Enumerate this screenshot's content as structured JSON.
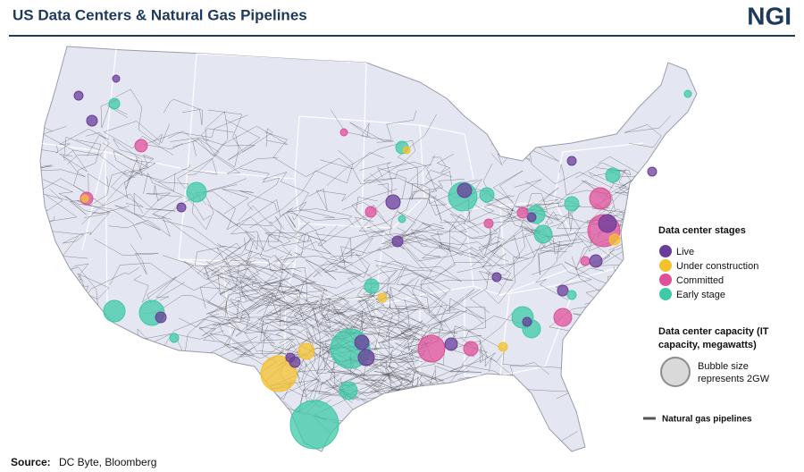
{
  "header": {
    "title": "US Data Centers & Natural Gas Pipelines",
    "logo": "NGI"
  },
  "legend": {
    "stages_title": "Data center stages",
    "stages": [
      {
        "name": "Live",
        "color": "#6a3d9a"
      },
      {
        "name": "Under construction",
        "color": "#f5c22b"
      },
      {
        "name": "Committed",
        "color": "#e0509a"
      },
      {
        "name": "Early stage",
        "color": "#3ec9a7"
      }
    ],
    "capacity_title_lines": [
      "Data center capacity (IT",
      "capacity, megawatts)"
    ],
    "capacity_note_lines": [
      "Bubble size",
      "represents 2GW"
    ],
    "pipelines": "Natural gas pipelines"
  },
  "source": {
    "label": "Source:",
    "text": "DC Byte, Bloomberg"
  }
}
